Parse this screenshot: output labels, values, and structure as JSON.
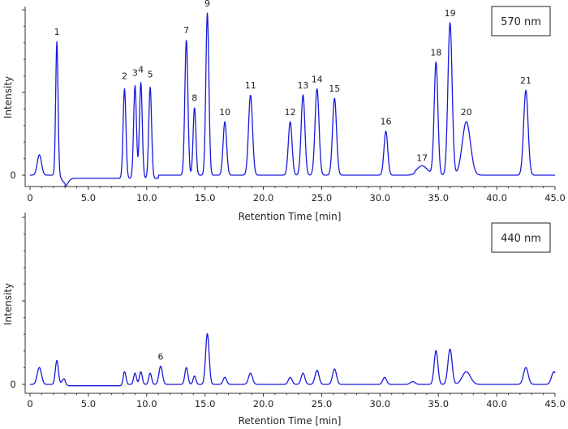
{
  "chart_data": [
    {
      "type": "line",
      "wavelength_label": "570 nm",
      "xlabel": "Retention Time [min]",
      "ylabel": "Intensity",
      "xlim": [
        0,
        45
      ],
      "x_ticks": [
        "0",
        "5.0",
        "10.0",
        "15.0",
        "20.0",
        "25.0",
        "30.0",
        "35.0",
        "40.0",
        "45.0"
      ],
      "y_ticks": [
        "0"
      ],
      "baseline": 0,
      "peaks": [
        {
          "label": "",
          "rt": 0.8,
          "height": 0.13,
          "width": 0.18
        },
        {
          "label": "1",
          "rt": 2.3,
          "height": 0.85,
          "width": 0.1
        },
        {
          "label": "2",
          "rt": 8.1,
          "height": 0.57,
          "width": 0.12
        },
        {
          "label": "3",
          "rt": 9.0,
          "height": 0.59,
          "width": 0.12
        },
        {
          "label": "4",
          "rt": 9.5,
          "height": 0.61,
          "width": 0.12
        },
        {
          "label": "5",
          "rt": 10.3,
          "height": 0.58,
          "width": 0.12
        },
        {
          "label": "7",
          "rt": 13.4,
          "height": 0.86,
          "width": 0.13
        },
        {
          "label": "8",
          "rt": 14.1,
          "height": 0.43,
          "width": 0.12
        },
        {
          "label": "9",
          "rt": 15.2,
          "height": 1.03,
          "width": 0.13
        },
        {
          "label": "10",
          "rt": 16.7,
          "height": 0.34,
          "width": 0.15
        },
        {
          "label": "11",
          "rt": 18.9,
          "height": 0.51,
          "width": 0.17
        },
        {
          "label": "12",
          "rt": 22.3,
          "height": 0.34,
          "width": 0.16
        },
        {
          "label": "13",
          "rt": 23.4,
          "height": 0.51,
          "width": 0.16
        },
        {
          "label": "14",
          "rt": 24.6,
          "height": 0.55,
          "width": 0.17
        },
        {
          "label": "15",
          "rt": 26.1,
          "height": 0.49,
          "width": 0.17
        },
        {
          "label": "16",
          "rt": 30.5,
          "height": 0.28,
          "width": 0.16
        },
        {
          "label": "17",
          "rt": 33.6,
          "height": 0.05,
          "width": 0.4
        },
        {
          "label": "18",
          "rt": 34.8,
          "height": 0.72,
          "width": 0.16
        },
        {
          "label": "19",
          "rt": 36.0,
          "height": 0.97,
          "width": 0.18
        },
        {
          "label": "20",
          "rt": 37.4,
          "height": 0.34,
          "width": 0.35
        },
        {
          "label": "21",
          "rt": 42.5,
          "height": 0.54,
          "width": 0.19
        }
      ]
    },
    {
      "type": "line",
      "wavelength_label": "440 nm",
      "xlabel": "Retention Time [min]",
      "ylabel": "Intensity",
      "xlim": [
        0,
        45
      ],
      "x_ticks": [
        "0",
        "5.0",
        "10.0",
        "15.0",
        "20.0",
        "25.0",
        "30.0",
        "35.0",
        "40.0",
        "45.0"
      ],
      "y_ticks": [
        "0"
      ],
      "baseline": 0,
      "peaks": [
        {
          "label": "",
          "rt": 0.8,
          "height": 0.12,
          "width": 0.18
        },
        {
          "label": "",
          "rt": 2.3,
          "height": 0.17,
          "width": 0.13
        },
        {
          "label": "",
          "rt": 2.9,
          "height": 0.04,
          "width": 0.15
        },
        {
          "label": "",
          "rt": 8.1,
          "height": 0.09,
          "width": 0.12
        },
        {
          "label": "",
          "rt": 9.0,
          "height": 0.08,
          "width": 0.12
        },
        {
          "label": "",
          "rt": 9.5,
          "height": 0.09,
          "width": 0.12
        },
        {
          "label": "",
          "rt": 10.3,
          "height": 0.08,
          "width": 0.12
        },
        {
          "label": "6",
          "rt": 11.2,
          "height": 0.13,
          "width": 0.15
        },
        {
          "label": "",
          "rt": 13.4,
          "height": 0.12,
          "width": 0.13
        },
        {
          "label": "",
          "rt": 14.1,
          "height": 0.06,
          "width": 0.12
        },
        {
          "label": "",
          "rt": 15.2,
          "height": 0.36,
          "width": 0.15
        },
        {
          "label": "",
          "rt": 16.7,
          "height": 0.05,
          "width": 0.15
        },
        {
          "label": "",
          "rt": 18.9,
          "height": 0.08,
          "width": 0.17
        },
        {
          "label": "",
          "rt": 22.3,
          "height": 0.05,
          "width": 0.16
        },
        {
          "label": "",
          "rt": 23.4,
          "height": 0.08,
          "width": 0.16
        },
        {
          "label": "",
          "rt": 24.6,
          "height": 0.1,
          "width": 0.17
        },
        {
          "label": "",
          "rt": 26.1,
          "height": 0.11,
          "width": 0.17
        },
        {
          "label": "",
          "rt": 30.4,
          "height": 0.05,
          "width": 0.16
        },
        {
          "label": "",
          "rt": 32.8,
          "height": 0.02,
          "width": 0.2
        },
        {
          "label": "",
          "rt": 34.8,
          "height": 0.24,
          "width": 0.16
        },
        {
          "label": "",
          "rt": 36.0,
          "height": 0.25,
          "width": 0.18
        },
        {
          "label": "",
          "rt": 37.4,
          "height": 0.09,
          "width": 0.35
        },
        {
          "label": "",
          "rt": 42.5,
          "height": 0.12,
          "width": 0.2
        },
        {
          "label": "",
          "rt": 44.9,
          "height": 0.09,
          "width": 0.2
        }
      ]
    }
  ]
}
